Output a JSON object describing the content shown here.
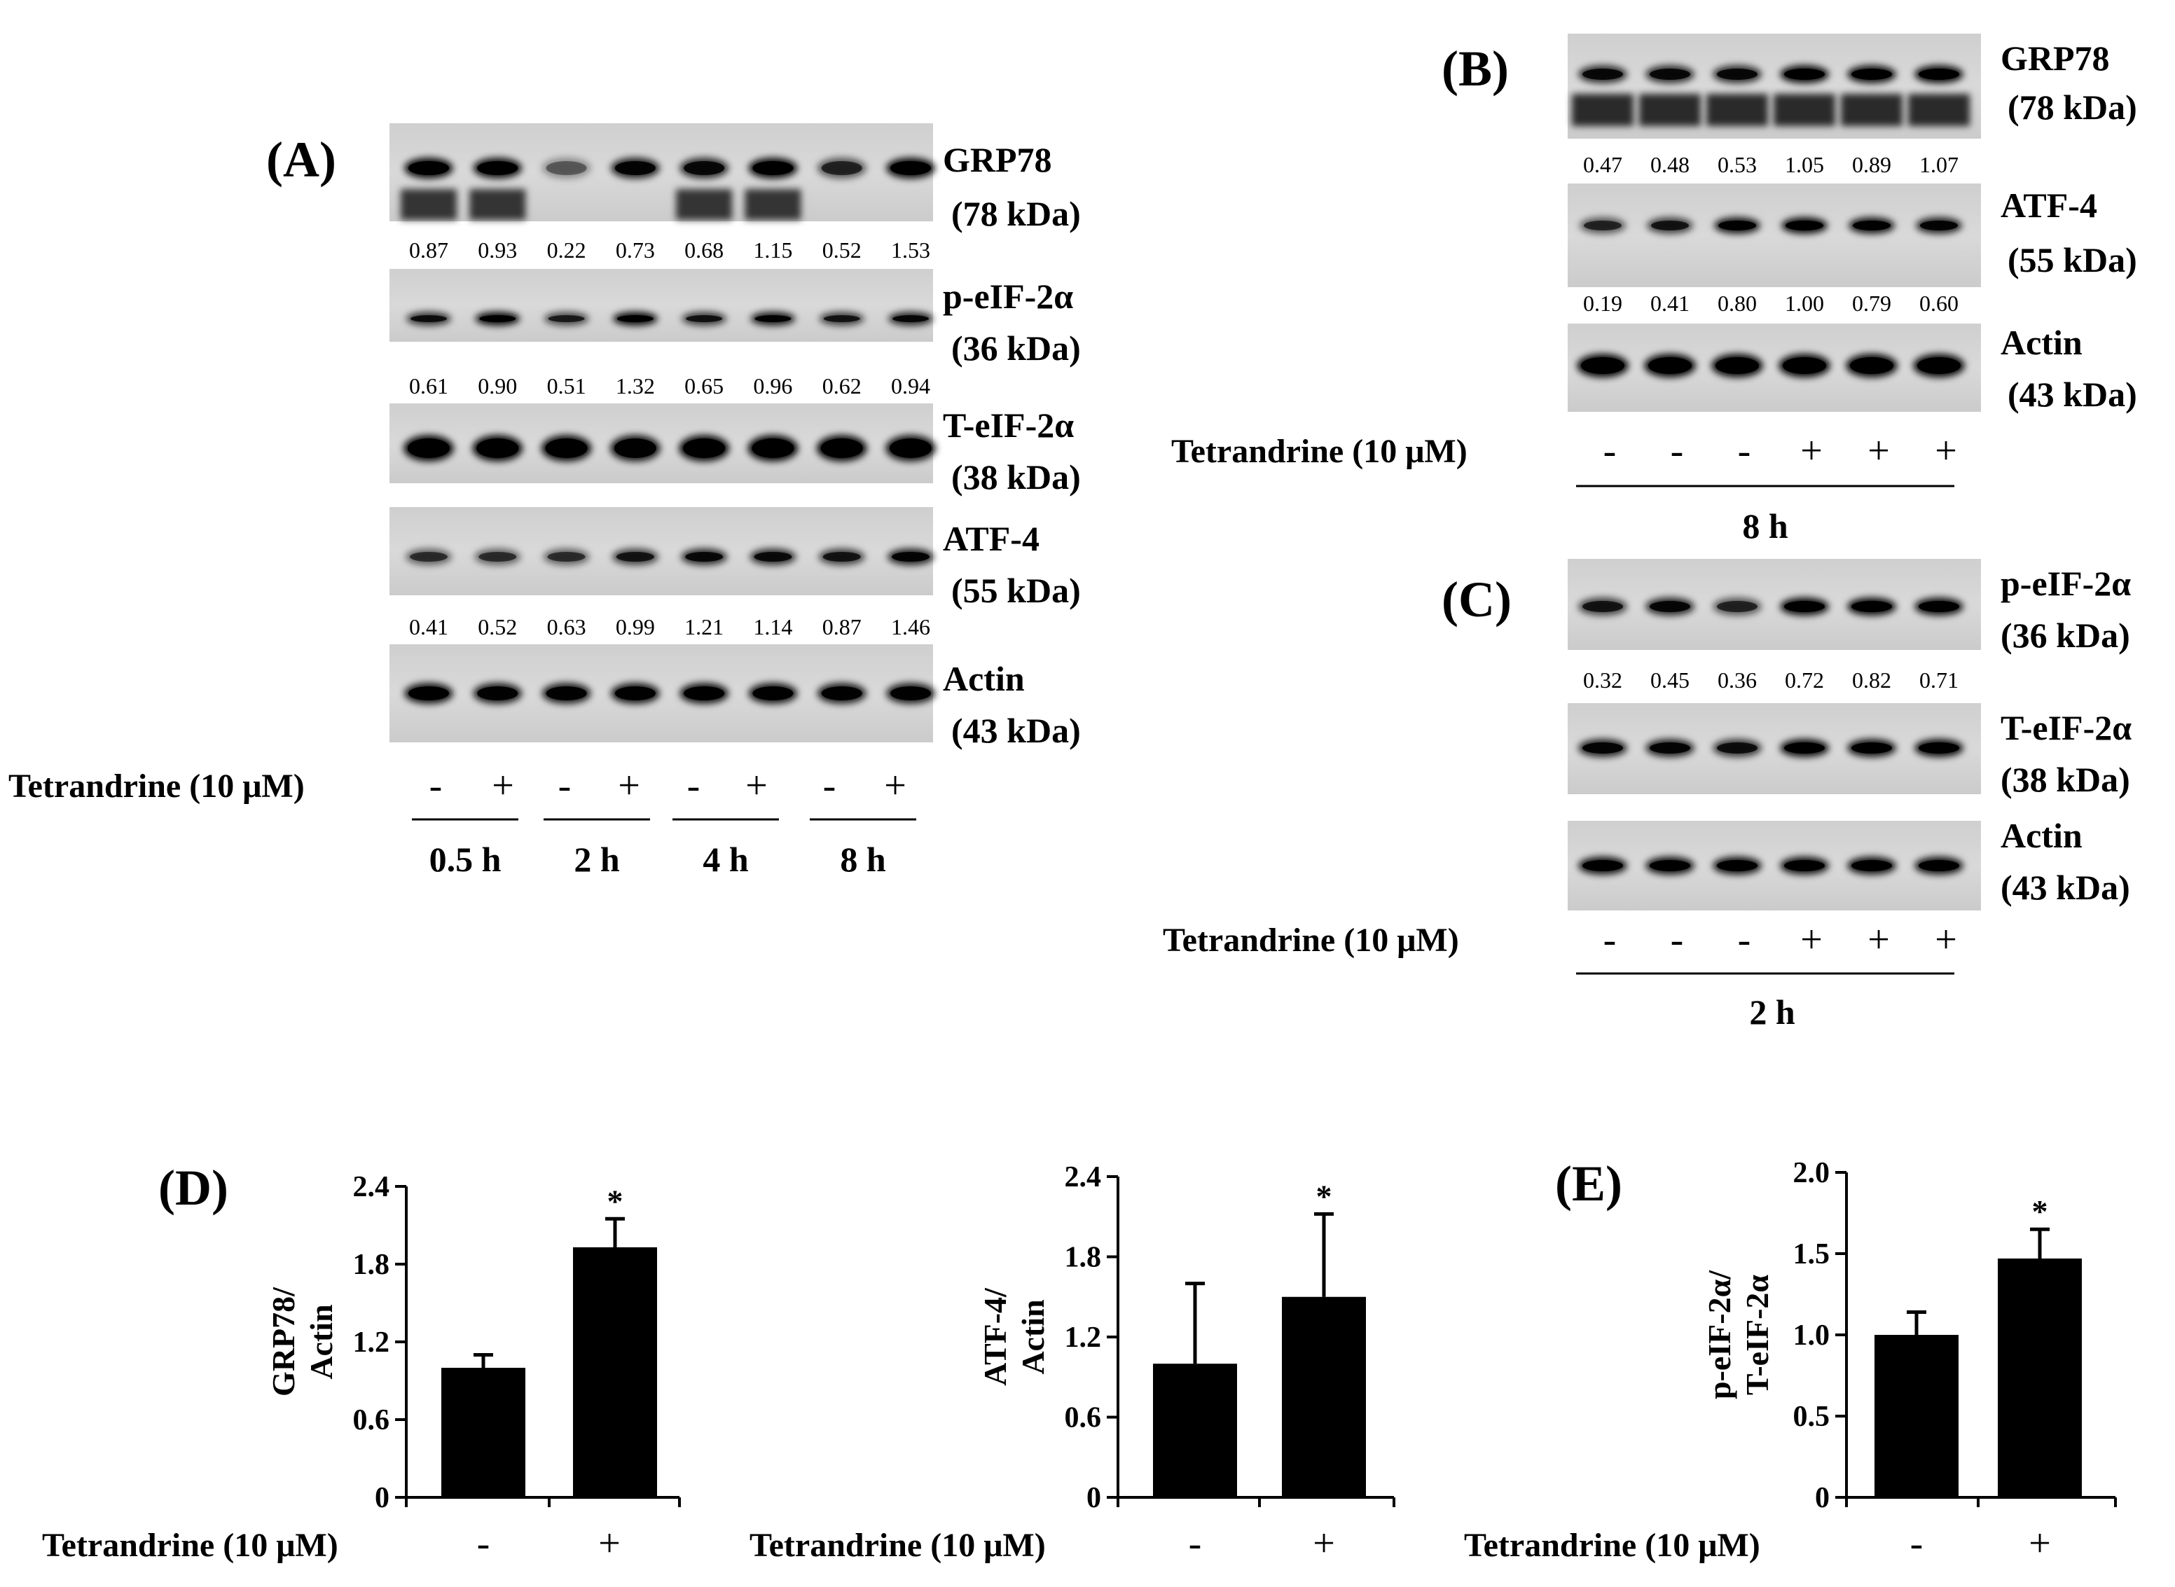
{
  "figure": {
    "panel_a": {
      "label": "(A)",
      "blots": [
        {
          "name": "GRP78",
          "mw": "(78 kDa)",
          "quant": [
            "0.87",
            "0.93",
            "0.22",
            "0.73",
            "0.68",
            "1.15",
            "0.52",
            "1.53"
          ]
        },
        {
          "name": "p-eIF-2α",
          "mw": "(36 kDa)",
          "quant": [
            "0.61",
            "0.90",
            "0.51",
            "1.32",
            "0.65",
            "0.96",
            "0.62",
            "0.94"
          ]
        },
        {
          "name": "T-eIF-2α",
          "mw": "(38 kDa)",
          "quant": []
        },
        {
          "name": "ATF-4",
          "mw": "(55 kDa)",
          "quant": [
            "0.41",
            "0.52",
            "0.63",
            "0.99",
            "1.21",
            "1.14",
            "0.87",
            "1.46"
          ]
        },
        {
          "name": "Actin",
          "mw": "(43 kDa)",
          "quant": []
        }
      ],
      "treatment_label": "Tetrandrine (10 μM)",
      "signs": [
        "-",
        "+",
        "-",
        "+",
        "-",
        "+",
        "-",
        "+"
      ],
      "times": [
        "0.5 h",
        "2 h",
        "4 h",
        "8 h"
      ]
    },
    "panel_b": {
      "label": "(B)",
      "blots": [
        {
          "name": "GRP78",
          "mw": "(78 kDa)",
          "quant": [
            "0.47",
            "0.48",
            "0.53",
            "1.05",
            "0.89",
            "1.07"
          ]
        },
        {
          "name": "ATF-4",
          "mw": "(55 kDa)",
          "quant": [
            "0.19",
            "0.41",
            "0.80",
            "1.00",
            "0.79",
            "0.60"
          ]
        },
        {
          "name": "Actin",
          "mw": "(43 kDa)",
          "quant": []
        }
      ],
      "treatment_label": "Tetrandrine (10 μM)",
      "signs": [
        "-",
        "-",
        "-",
        "+",
        "+",
        "+"
      ],
      "time": "8 h"
    },
    "panel_c": {
      "label": "(C)",
      "blots": [
        {
          "name": "p-eIF-2α",
          "mw": "(36 kDa)",
          "quant": [
            "0.32",
            "0.45",
            "0.36",
            "0.72",
            "0.82",
            "0.71"
          ]
        },
        {
          "name": "T-eIF-2α",
          "mw": "(38 kDa)",
          "quant": []
        },
        {
          "name": "Actin",
          "mw": "(43 kDa)",
          "quant": []
        }
      ],
      "treatment_label": "Tetrandrine (10 μM)",
      "signs": [
        "-",
        "-",
        "-",
        "+",
        "+",
        "+"
      ],
      "time": "2 h"
    },
    "panel_d_label": "(D)",
    "panel_e_label": "(E)"
  },
  "chart_data": [
    {
      "type": "bar",
      "panel": "D-left",
      "title": "",
      "categories": [
        "-",
        "+"
      ],
      "values": [
        1.0,
        1.93
      ],
      "errors": [
        0.1,
        0.22
      ],
      "significance": [
        "",
        "*"
      ],
      "ylabel_lines": [
        "GRP78/",
        "Actin"
      ],
      "xlabel": "Tetrandrine (10 μM)",
      "ylim": [
        0,
        2.4
      ],
      "yticks": [
        "0",
        "0.6",
        "1.2",
        "1.8",
        "2.4"
      ],
      "grid": false
    },
    {
      "type": "bar",
      "panel": "D-right",
      "title": "",
      "categories": [
        "-",
        "+"
      ],
      "values": [
        1.0,
        1.5
      ],
      "errors": [
        0.6,
        0.62
      ],
      "significance": [
        "",
        "*"
      ],
      "ylabel_lines": [
        "ATF-4/",
        "Actin"
      ],
      "xlabel": "Tetrandrine (10 μM)",
      "ylim": [
        0,
        2.4
      ],
      "yticks": [
        "0",
        "0.6",
        "1.2",
        "1.8",
        "2.4"
      ],
      "grid": false
    },
    {
      "type": "bar",
      "panel": "E",
      "title": "",
      "categories": [
        "-",
        "+"
      ],
      "values": [
        1.0,
        1.47
      ],
      "errors": [
        0.14,
        0.18
      ],
      "significance": [
        "",
        "*"
      ],
      "ylabel_lines": [
        "p-eIF-2α/",
        "T-eIF-2α"
      ],
      "xlabel": "Tetrandrine (10 μM)",
      "ylim": [
        0,
        2.0
      ],
      "yticks": [
        "0",
        "0.5",
        "1.0",
        "1.5",
        "2.0"
      ],
      "grid": false
    }
  ]
}
